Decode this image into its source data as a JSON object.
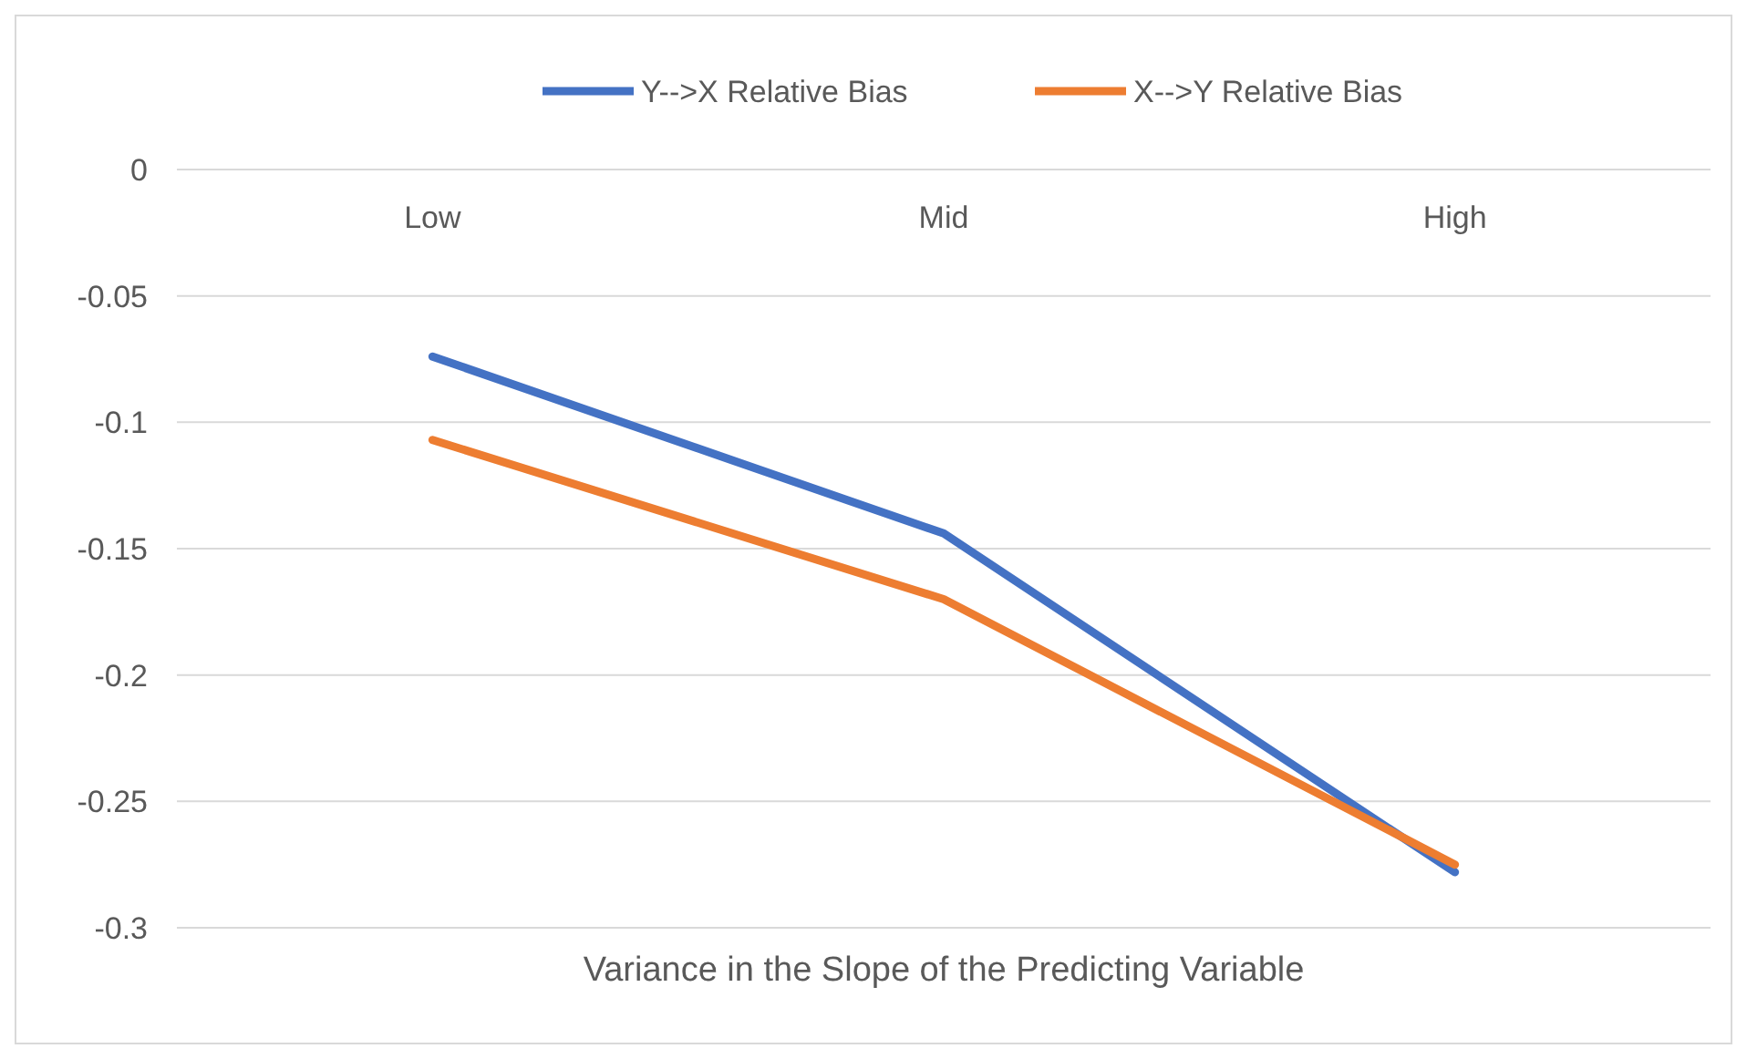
{
  "chart_data": {
    "type": "line",
    "xlabel": "Variance in the Slope of the Predicting Variable",
    "categories": [
      "Low",
      "Mid",
      "High"
    ],
    "series": [
      {
        "name": "Y-->X Relative Bias",
        "color": "#4472c4",
        "values": [
          -0.074,
          -0.144,
          -0.278
        ]
      },
      {
        "name": "X-->Y Relative Bias",
        "color": "#ed7d31",
        "values": [
          -0.107,
          -0.17,
          -0.275
        ]
      }
    ],
    "ylim": [
      -0.3,
      0
    ],
    "yticks": [
      -0.3,
      -0.25,
      -0.2,
      -0.15,
      -0.1,
      -0.05,
      0
    ],
    "grid": "y",
    "legend": "top",
    "marker": "none",
    "line_style": "solid"
  }
}
